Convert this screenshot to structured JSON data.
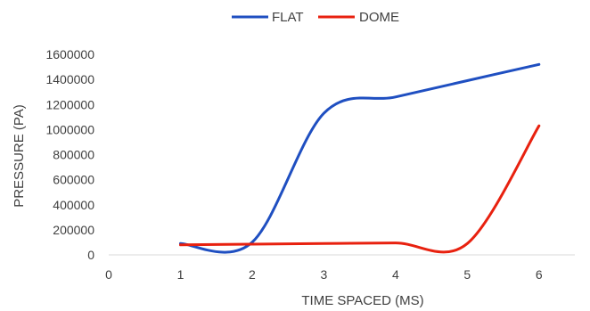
{
  "chart_data": {
    "type": "line",
    "title": "",
    "xlabel": "TIME SPACED (MS)",
    "ylabel": "PRESSURE (PA)",
    "xlim": [
      0,
      6.5
    ],
    "ylim": [
      0,
      1600000
    ],
    "x_ticks": [
      "0",
      "1",
      "2",
      "3",
      "4",
      "5",
      "6"
    ],
    "y_ticks": [
      "0",
      "200000",
      "400000",
      "600000",
      "800000",
      "1000000",
      "1200000",
      "1400000",
      "1600000"
    ],
    "grid": false,
    "legend_position": "top-center",
    "series": [
      {
        "name": "FLAT",
        "color": "#1f4fc1",
        "x": [
          1,
          2,
          3,
          4,
          5,
          6
        ],
        "y": [
          90000,
          100000,
          1130000,
          1260000,
          1390000,
          1520000
        ]
      },
      {
        "name": "DOME",
        "color": "#e8210f",
        "x": [
          1,
          2,
          3,
          4,
          5,
          6
        ],
        "y": [
          80000,
          85000,
          90000,
          95000,
          90000,
          1030000
        ]
      }
    ]
  }
}
